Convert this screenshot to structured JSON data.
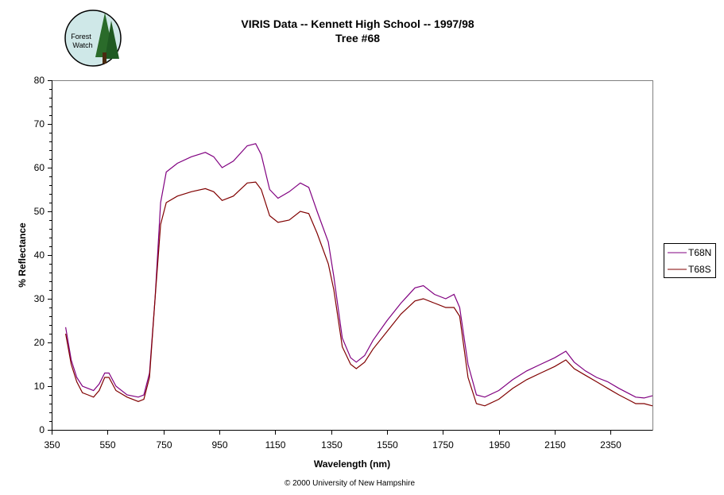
{
  "logo": {
    "text_line1": "Forest",
    "text_line2": "Watch"
  },
  "chart_data": {
    "type": "line",
    "title": "VIRIS Data -- Kennett High School -- 1997/98",
    "subtitle": "Tree #68",
    "xlabel": "Wavelength (nm)",
    "ylabel": "% Reflectance",
    "xlim": [
      350,
      2500
    ],
    "ylim": [
      0,
      80
    ],
    "xticks": [
      350,
      550,
      750,
      950,
      1150,
      1350,
      1550,
      1750,
      1950,
      2150,
      2350
    ],
    "yticks": [
      0,
      10,
      20,
      30,
      40,
      50,
      60,
      70,
      80
    ],
    "grid": false,
    "legend": "right",
    "x": [
      400,
      420,
      440,
      460,
      480,
      500,
      520,
      540,
      555,
      580,
      620,
      660,
      680,
      700,
      720,
      740,
      760,
      800,
      850,
      900,
      930,
      960,
      1000,
      1050,
      1080,
      1100,
      1130,
      1160,
      1200,
      1240,
      1270,
      1300,
      1340,
      1360,
      1390,
      1420,
      1440,
      1470,
      1500,
      1550,
      1600,
      1650,
      1680,
      1720,
      1760,
      1790,
      1810,
      1840,
      1870,
      1900,
      1950,
      2000,
      2050,
      2100,
      2150,
      2190,
      2220,
      2260,
      2300,
      2340,
      2380,
      2410,
      2440,
      2470,
      2500
    ],
    "series": [
      {
        "name": "T68N",
        "color": "#800080",
        "values": [
          23.5,
          16,
          12,
          10,
          9.5,
          9,
          10.5,
          13,
          13,
          10,
          8,
          7.5,
          8,
          13,
          30,
          52,
          59,
          61,
          62.5,
          63.5,
          62.5,
          60,
          61.5,
          65,
          65.5,
          63,
          55,
          53,
          54.5,
          56.5,
          55.5,
          50,
          43,
          35,
          21,
          16.5,
          15.5,
          17,
          20.5,
          25,
          29,
          32.5,
          33,
          31,
          30,
          31,
          28,
          15,
          8,
          7.5,
          9,
          11.5,
          13.5,
          15,
          16.5,
          18,
          15.5,
          13.5,
          12,
          11,
          9.5,
          8.5,
          7.5,
          7.3,
          7.8
        ]
      },
      {
        "name": "T68S",
        "color": "#800000",
        "values": [
          22,
          15,
          11,
          8.5,
          8,
          7.5,
          9,
          12,
          12,
          9,
          7.5,
          6.5,
          7,
          12,
          30,
          47,
          52,
          53.5,
          54.5,
          55.2,
          54.5,
          52.5,
          53.5,
          56.5,
          56.7,
          55,
          49,
          47.5,
          48,
          50,
          49.5,
          45,
          38,
          32,
          19,
          15,
          14,
          15.5,
          18.5,
          22.5,
          26.5,
          29.5,
          30,
          29,
          28,
          28,
          26,
          12,
          6,
          5.5,
          7,
          9.5,
          11.5,
          13,
          14.5,
          16,
          14,
          12.5,
          11,
          9.5,
          8,
          7,
          6,
          6,
          5.5
        ]
      }
    ]
  },
  "footer": {
    "copyright": "© 2000 University of New Hampshire"
  }
}
